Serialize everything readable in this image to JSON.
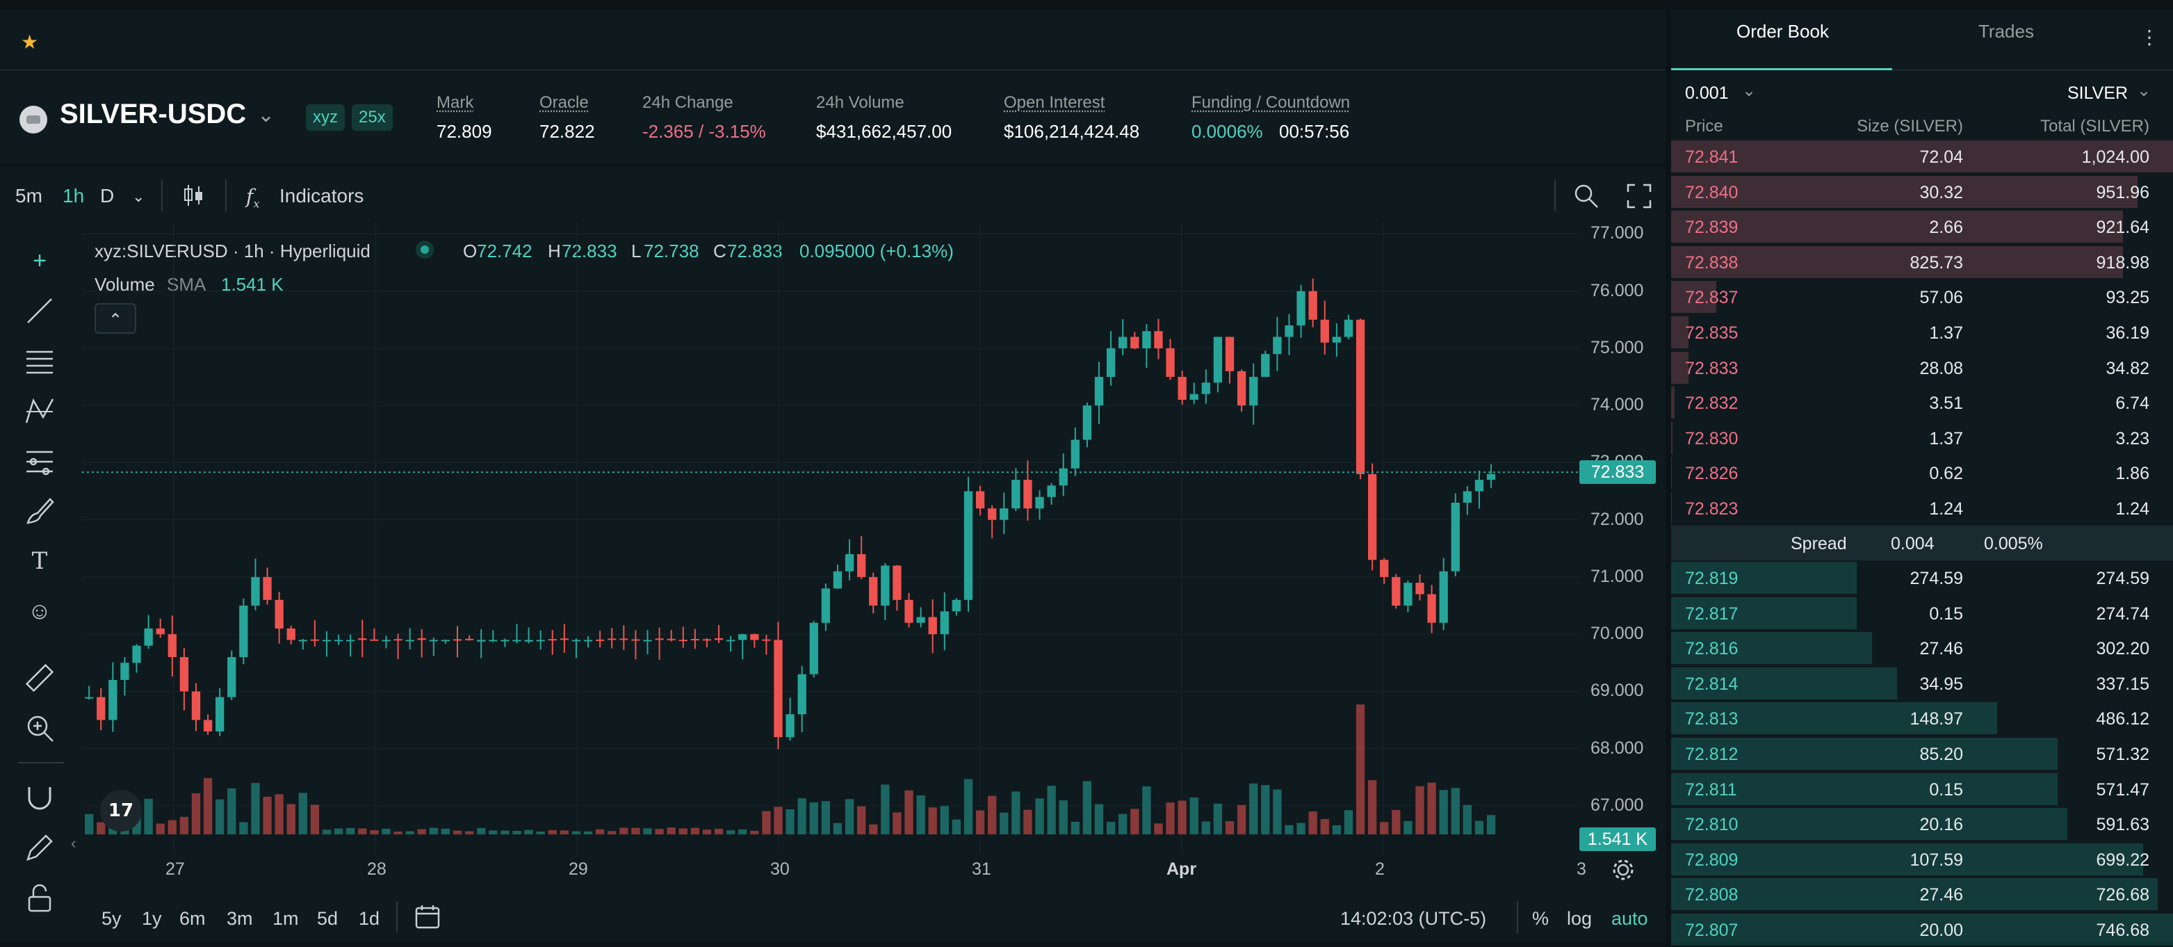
{
  "header": {
    "pair": "SILVER-USDC",
    "tags": [
      "xyz",
      "25x"
    ],
    "stats": [
      {
        "label": "Mark",
        "value": "72.809",
        "underline": true
      },
      {
        "label": "Oracle",
        "value": "72.822",
        "underline": true
      },
      {
        "label": "24h Change",
        "value": "-2.365 / -3.15%",
        "underline": false,
        "color": "red"
      },
      {
        "label": "24h Volume",
        "value": "$431,662,457.00",
        "underline": false
      },
      {
        "label": "Open Interest",
        "value": "$106,214,424.48",
        "underline": true
      },
      {
        "label": "Funding / Countdown",
        "value": "0.0006%",
        "value2": "00:57:56",
        "underline": true
      }
    ]
  },
  "toolbar": {
    "timeframes": [
      "5m",
      "1h",
      "D"
    ],
    "active_timeframe": "1h",
    "indicators_label": "Indicators"
  },
  "legend": {
    "symbol": "xyz:SILVERUSD · 1h · Hyperliquid",
    "o_label": "O",
    "o": "72.742",
    "h_label": "H",
    "h": "72.833",
    "l_label": "L",
    "l": "72.738",
    "c_label": "C",
    "c": "72.833",
    "change": "0.095000 (+0.13%)",
    "volume_label": "Volume",
    "sma_label": "SMA",
    "volume_value": "1.541 K",
    "collapse_glyph": "⌃"
  },
  "chart": {
    "price_ticks": [
      "77.000",
      "76.000",
      "75.000",
      "74.000",
      "73.000",
      "72.000",
      "71.000",
      "70.000",
      "69.000",
      "68.000",
      "67.000"
    ],
    "price_badge": "72.833",
    "volume_badge": "1.541 K",
    "date_ticks": [
      "27",
      "28",
      "29",
      "30",
      "31",
      "Apr",
      "2",
      "3"
    ],
    "time": "14:02:03 (UTC-5)",
    "bottom_ranges": [
      "5y",
      "1y",
      "6m",
      "3m",
      "1m",
      "5d",
      "1d"
    ],
    "pct": "%",
    "log": "log",
    "auto": "auto",
    "logo": "17"
  },
  "chart_data": {
    "type": "candlestick",
    "ylim": [
      66.5,
      77.2
    ],
    "x_labels": [
      "27",
      "28",
      "29",
      "30",
      "31",
      "Apr",
      "2",
      "3"
    ],
    "colors": {
      "up": "#26a69a",
      "down": "#ef5350"
    },
    "last_price": 72.833,
    "series": [
      {
        "name": "price",
        "close_path": [
          68.9,
          68.5,
          69.2,
          69.5,
          69.8,
          70.1,
          70.0,
          69.6,
          69.0,
          68.5,
          68.3,
          68.9,
          69.6,
          70.5,
          71.0,
          70.6,
          70.1,
          69.9,
          69.9,
          69.9,
          69.9,
          69.9,
          69.9,
          69.9,
          69.9,
          69.9,
          69.9,
          69.9,
          69.9,
          69.9,
          69.9,
          69.9,
          69.9,
          69.9,
          69.9,
          69.9,
          69.9,
          69.9,
          69.9,
          69.9,
          69.9,
          69.9,
          69.9,
          69.9,
          69.9,
          69.9,
          69.9,
          69.9,
          69.9,
          69.9,
          69.9,
          69.9,
          69.9,
          69.9,
          69.9,
          70.0,
          69.9,
          69.9,
          68.2,
          68.6,
          69.3,
          70.2,
          70.8,
          71.1,
          71.4,
          71.0,
          70.5,
          71.2,
          70.6,
          70.2,
          70.3,
          70.0,
          70.4,
          70.6,
          72.5,
          72.2,
          72.0,
          72.2,
          72.7,
          72.2,
          72.4,
          72.6,
          72.9,
          73.4,
          74.0,
          74.5,
          75.0,
          75.2,
          75.0,
          75.3,
          75.0,
          74.5,
          74.1,
          74.2,
          74.4,
          75.2,
          74.6,
          74.0,
          74.5,
          74.9,
          75.2,
          75.4,
          76.0,
          75.5,
          75.1,
          75.2,
          75.5,
          72.8,
          71.3,
          71.0,
          70.5,
          70.9,
          70.7,
          70.2,
          71.1,
          72.3,
          72.5,
          72.7,
          72.8
        ]
      },
      {
        "name": "volume",
        "close_path": []
      }
    ]
  },
  "orderbook": {
    "tabs": [
      "Order Book",
      "Trades"
    ],
    "active_tab": "Order Book",
    "tick_size": "0.001",
    "unit": "SILVER",
    "columns": [
      "Price",
      "Size (SILVER)",
      "Total (SILVER)"
    ],
    "asks": [
      {
        "price": "72.841",
        "size": "72.04",
        "total": "1,024.00",
        "depth": 1.0
      },
      {
        "price": "72.840",
        "size": "30.32",
        "total": "951.96",
        "depth": 0.93
      },
      {
        "price": "72.839",
        "size": "2.66",
        "total": "921.64",
        "depth": 0.9
      },
      {
        "price": "72.838",
        "size": "825.73",
        "total": "918.98",
        "depth": 0.9
      },
      {
        "price": "72.837",
        "size": "57.06",
        "total": "93.25",
        "depth": 0.09
      },
      {
        "price": "72.835",
        "size": "1.37",
        "total": "36.19",
        "depth": 0.035
      },
      {
        "price": "72.833",
        "size": "28.08",
        "total": "34.82",
        "depth": 0.034
      },
      {
        "price": "72.832",
        "size": "3.51",
        "total": "6.74",
        "depth": 0.007
      },
      {
        "price": "72.830",
        "size": "1.37",
        "total": "3.23",
        "depth": 0.003
      },
      {
        "price": "72.826",
        "size": "0.62",
        "total": "1.86",
        "depth": 0.002
      },
      {
        "price": "72.823",
        "size": "1.24",
        "total": "1.24",
        "depth": 0.001
      }
    ],
    "spread": {
      "label": "Spread",
      "value": "0.004",
      "pct": "0.005%"
    },
    "bids": [
      {
        "price": "72.819",
        "size": "274.59",
        "total": "274.59",
        "depth": 0.37
      },
      {
        "price": "72.817",
        "size": "0.15",
        "total": "274.74",
        "depth": 0.37
      },
      {
        "price": "72.816",
        "size": "27.46",
        "total": "302.20",
        "depth": 0.4
      },
      {
        "price": "72.814",
        "size": "34.95",
        "total": "337.15",
        "depth": 0.45
      },
      {
        "price": "72.813",
        "size": "148.97",
        "total": "486.12",
        "depth": 0.65
      },
      {
        "price": "72.812",
        "size": "85.20",
        "total": "571.32",
        "depth": 0.77
      },
      {
        "price": "72.811",
        "size": "0.15",
        "total": "571.47",
        "depth": 0.77
      },
      {
        "price": "72.810",
        "size": "20.16",
        "total": "591.63",
        "depth": 0.79
      },
      {
        "price": "72.809",
        "size": "107.59",
        "total": "699.22",
        "depth": 0.94
      },
      {
        "price": "72.808",
        "size": "27.46",
        "total": "726.68",
        "depth": 0.97
      },
      {
        "price": "72.807",
        "size": "20.00",
        "total": "746.68",
        "depth": 1.0
      }
    ]
  }
}
